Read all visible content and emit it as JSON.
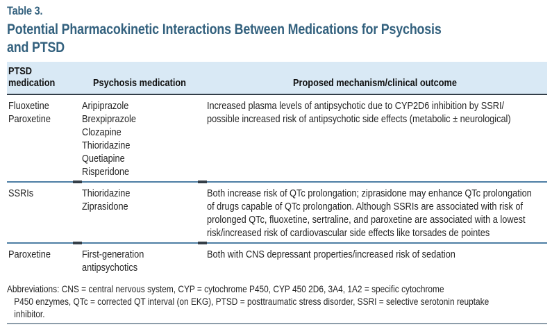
{
  "colors": {
    "title_blue": "#33617e",
    "header_bg": "#d9e9f5",
    "rule_dark": "#333e48",
    "divider_blue": "#4d7ea4",
    "bottom_rule": "#8d9daa",
    "body_text": "#242424"
  },
  "table_label": "Table 3.",
  "title_lines": [
    "Potential Pharmacokinetic Interactions Between Medications for Psychosis",
    "and PTSD"
  ],
  "header": {
    "col1_lines": [
      "PTSD",
      "medication"
    ],
    "col2": "Psychosis medication",
    "col3": "Proposed mechanism/clinical outcome"
  },
  "rows": [
    {
      "ptsd_medication": [
        "Fluoxetine",
        "Paroxetine"
      ],
      "psychosis_medication": [
        "Aripiprazole",
        "Brexpiprazole",
        "Clozapine",
        "Thioridazine",
        "Quetiapine",
        "Risperidone"
      ],
      "mechanism_lines": [
        "Increased plasma levels of antipsychotic due to CYP2D6 inhibition by SSRI/",
        "possible increased risk of antipsychotic side effects (metabolic ± neurological)"
      ]
    },
    {
      "ptsd_medication": [
        "SSRIs"
      ],
      "psychosis_medication": [
        "Thioridazine",
        "Ziprasidone"
      ],
      "mechanism_lines": [
        "Both increase risk of QTc prolongation; ziprasidone may enhance QTc prolongation",
        "of drugs capable of QTc prolongation. Although SSRIs are associated with risk of",
        "prolonged QTc, fluoxetine, sertraline, and paroxetine are associated with a lowest",
        "risk/increased risk of cardiovascular side effects like torsades de pointes"
      ]
    },
    {
      "ptsd_medication": [
        "Paroxetine"
      ],
      "psychosis_medication": [
        "First-generation",
        "antipsychotics"
      ],
      "mechanism_lines": [
        "Both with CNS depressant properties/increased risk of sedation"
      ]
    }
  ],
  "footnote_lines": [
    "Abbreviations: CNS = central nervous system, CYP = cytochrome P450, CYP 450 2D6, 3A4, 1A2 = specific cytochrome",
    "P450 enzymes, QTc = corrected QT interval (on EKG), PTSD = posttraumatic stress disorder, SSRI = selective serotonin reuptake",
    "inhibitor."
  ]
}
